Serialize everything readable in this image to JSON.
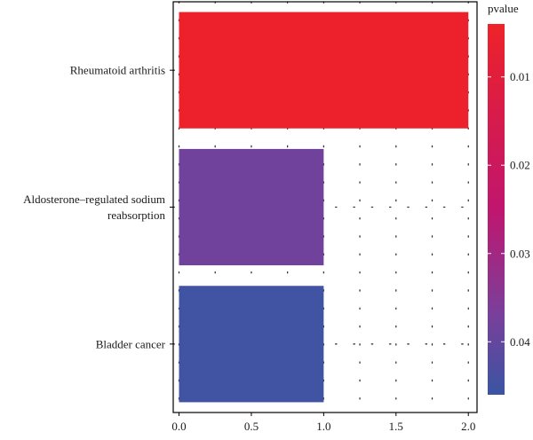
{
  "chart_data": {
    "type": "bar",
    "orientation": "horizontal",
    "categories": [
      [
        "Rheumatoid arthritis"
      ],
      [
        "Aldosterone–regulated sodium",
        "reabsorption"
      ],
      [
        "Bladder cancer"
      ]
    ],
    "values": [
      2,
      1,
      1
    ],
    "pvalues": [
      0.005,
      0.038,
      0.045
    ],
    "xticks": [
      "0.0",
      "0.5",
      "1.0",
      "1.5",
      "2.0"
    ],
    "xlim": [
      -0.04,
      2.06
    ],
    "grid": true,
    "colorbar": {
      "title": "pvalue",
      "ticks": [
        "0.01",
        "0.02",
        "0.03",
        "0.04"
      ],
      "range": [
        0.004,
        0.046
      ],
      "color_low": "#ee2228",
      "color_high": "#3a55a4"
    }
  }
}
